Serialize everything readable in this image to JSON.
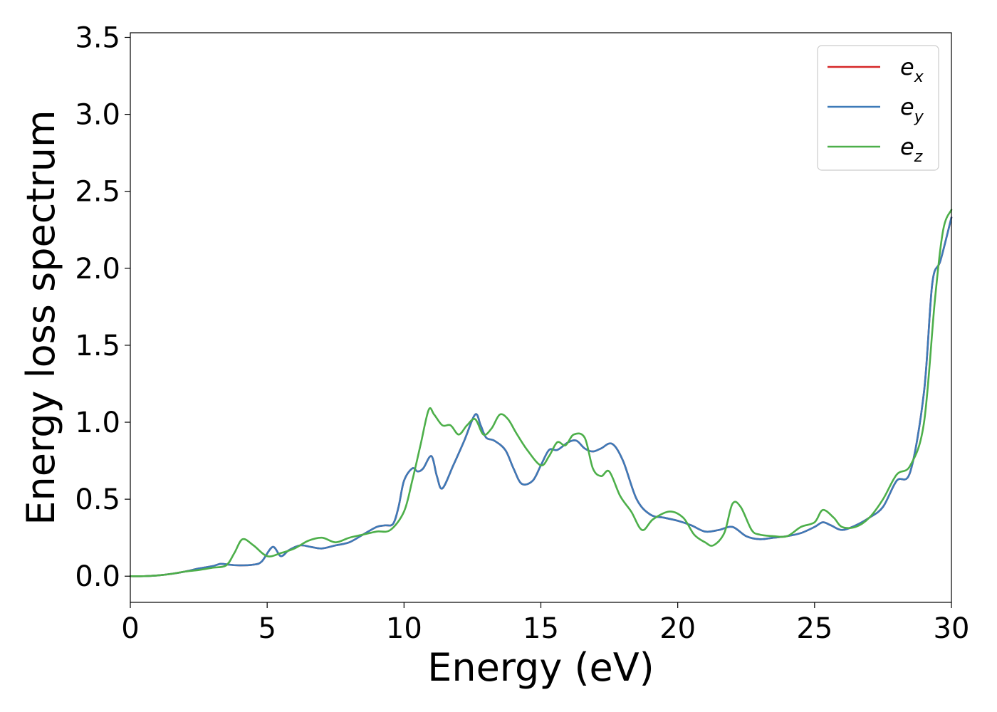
{
  "chart_data": {
    "type": "line",
    "title": "",
    "xlabel": "Energy (eV)",
    "ylabel": "Energy loss spectrum",
    "xlim": [
      0,
      30
    ],
    "ylim": [
      -0.17,
      3.53
    ],
    "xticks": [
      0,
      5,
      10,
      15,
      20,
      25,
      30
    ],
    "xtick_labels": [
      "0",
      "5",
      "10",
      "15",
      "20",
      "25",
      "30"
    ],
    "yticks": [
      0.0,
      0.5,
      1.0,
      1.5,
      2.0,
      2.5,
      3.0,
      3.5
    ],
    "ytick_labels": [
      "0.0",
      "0.5",
      "1.0",
      "1.5",
      "2.0",
      "2.5",
      "3.0",
      "3.5"
    ],
    "grid": false,
    "legend_position": "top-right",
    "series": [
      {
        "name": "e_x",
        "legend_base": "e",
        "legend_sub": "x",
        "color": "#d62728",
        "x": [
          0,
          0.5,
          1,
          1.5,
          2,
          2.5,
          3,
          3.3,
          3.6,
          4,
          4.5,
          4.8,
          5.2,
          5.5,
          5.8,
          6.2,
          6.6,
          7,
          7.5,
          8,
          8.5,
          9,
          9.3,
          9.6,
          9.8,
          10,
          10.3,
          10.5,
          10.7,
          11,
          11.2,
          11.4,
          11.8,
          12.2,
          12.6,
          12.8,
          13,
          13.3,
          13.7,
          14,
          14.3,
          14.7,
          15,
          15.3,
          15.6,
          16,
          16.3,
          16.6,
          16.9,
          17.2,
          17.6,
          18,
          18.5,
          19,
          19.5,
          20,
          20.5,
          21,
          21.5,
          22,
          22.5,
          23,
          23.5,
          24,
          24.5,
          25,
          25.3,
          25.6,
          26,
          26.5,
          27,
          27.5,
          28,
          28.5,
          29,
          29.3,
          29.6,
          30
        ],
        "y": [
          0,
          0,
          0.005,
          0.015,
          0.03,
          0.05,
          0.065,
          0.08,
          0.075,
          0.07,
          0.075,
          0.095,
          0.19,
          0.13,
          0.17,
          0.2,
          0.19,
          0.18,
          0.2,
          0.22,
          0.27,
          0.32,
          0.33,
          0.34,
          0.45,
          0.62,
          0.7,
          0.68,
          0.7,
          0.78,
          0.65,
          0.57,
          0.72,
          0.88,
          1.05,
          0.98,
          0.9,
          0.88,
          0.82,
          0.7,
          0.6,
          0.62,
          0.72,
          0.82,
          0.82,
          0.87,
          0.88,
          0.83,
          0.81,
          0.83,
          0.86,
          0.75,
          0.5,
          0.4,
          0.38,
          0.36,
          0.33,
          0.29,
          0.3,
          0.32,
          0.26,
          0.24,
          0.25,
          0.26,
          0.28,
          0.32,
          0.35,
          0.33,
          0.3,
          0.33,
          0.38,
          0.45,
          0.62,
          0.68,
          1.2,
          1.9,
          2.05,
          2.33
        ]
      },
      {
        "name": "e_y",
        "legend_base": "e",
        "legend_sub": "y",
        "color": "#3d7ab8",
        "x": [
          0,
          0.5,
          1,
          1.5,
          2,
          2.5,
          3,
          3.3,
          3.6,
          4,
          4.5,
          4.8,
          5.2,
          5.5,
          5.8,
          6.2,
          6.6,
          7,
          7.5,
          8,
          8.5,
          9,
          9.3,
          9.6,
          9.8,
          10,
          10.3,
          10.5,
          10.7,
          11,
          11.2,
          11.4,
          11.8,
          12.2,
          12.6,
          12.8,
          13,
          13.3,
          13.7,
          14,
          14.3,
          14.7,
          15,
          15.3,
          15.6,
          16,
          16.3,
          16.6,
          16.9,
          17.2,
          17.6,
          18,
          18.5,
          19,
          19.5,
          20,
          20.5,
          21,
          21.5,
          22,
          22.5,
          23,
          23.5,
          24,
          24.5,
          25,
          25.3,
          25.6,
          26,
          26.5,
          27,
          27.5,
          28,
          28.5,
          29,
          29.3,
          29.6,
          30
        ],
        "y": [
          0,
          0,
          0.005,
          0.015,
          0.03,
          0.05,
          0.065,
          0.08,
          0.075,
          0.07,
          0.075,
          0.095,
          0.19,
          0.13,
          0.17,
          0.2,
          0.19,
          0.18,
          0.2,
          0.22,
          0.27,
          0.32,
          0.33,
          0.34,
          0.45,
          0.62,
          0.7,
          0.68,
          0.7,
          0.78,
          0.65,
          0.57,
          0.72,
          0.88,
          1.05,
          0.98,
          0.9,
          0.88,
          0.82,
          0.7,
          0.6,
          0.62,
          0.72,
          0.82,
          0.82,
          0.87,
          0.88,
          0.83,
          0.81,
          0.83,
          0.86,
          0.75,
          0.5,
          0.4,
          0.38,
          0.36,
          0.33,
          0.29,
          0.3,
          0.32,
          0.26,
          0.24,
          0.25,
          0.26,
          0.28,
          0.32,
          0.35,
          0.33,
          0.3,
          0.33,
          0.38,
          0.45,
          0.62,
          0.68,
          1.2,
          1.9,
          2.05,
          2.33
        ]
      },
      {
        "name": "e_z",
        "legend_base": "e",
        "legend_sub": "z",
        "color": "#4daf4a",
        "x": [
          0,
          0.5,
          1,
          1.5,
          2,
          2.5,
          3,
          3.5,
          3.8,
          4.1,
          4.5,
          5,
          5.5,
          6,
          6.5,
          7,
          7.5,
          8,
          8.5,
          9,
          9.5,
          10,
          10.3,
          10.6,
          10.9,
          11.1,
          11.4,
          11.7,
          12,
          12.3,
          12.6,
          12.9,
          13.2,
          13.5,
          13.8,
          14.1,
          14.5,
          15,
          15.3,
          15.6,
          15.9,
          16.2,
          16.6,
          16.9,
          17.2,
          17.5,
          17.9,
          18.3,
          18.7,
          19.1,
          19.7,
          20.2,
          20.6,
          21,
          21.3,
          21.7,
          22,
          22.3,
          22.7,
          23,
          23.5,
          24,
          24.5,
          25,
          25.3,
          25.7,
          26,
          26.5,
          27,
          27.5,
          28,
          28.5,
          29,
          29.4,
          29.7,
          30
        ],
        "y": [
          0,
          0,
          0.005,
          0.015,
          0.03,
          0.04,
          0.055,
          0.07,
          0.15,
          0.24,
          0.2,
          0.13,
          0.15,
          0.18,
          0.23,
          0.25,
          0.22,
          0.25,
          0.27,
          0.29,
          0.3,
          0.42,
          0.62,
          0.85,
          1.08,
          1.05,
          0.98,
          0.98,
          0.92,
          0.98,
          1.02,
          0.92,
          0.96,
          1.05,
          1.02,
          0.93,
          0.82,
          0.72,
          0.78,
          0.87,
          0.85,
          0.92,
          0.9,
          0.7,
          0.65,
          0.68,
          0.52,
          0.42,
          0.3,
          0.37,
          0.42,
          0.38,
          0.27,
          0.22,
          0.2,
          0.28,
          0.47,
          0.45,
          0.3,
          0.27,
          0.26,
          0.26,
          0.32,
          0.35,
          0.43,
          0.38,
          0.32,
          0.32,
          0.38,
          0.5,
          0.66,
          0.72,
          1.0,
          1.8,
          2.25,
          2.38
        ]
      }
    ]
  }
}
